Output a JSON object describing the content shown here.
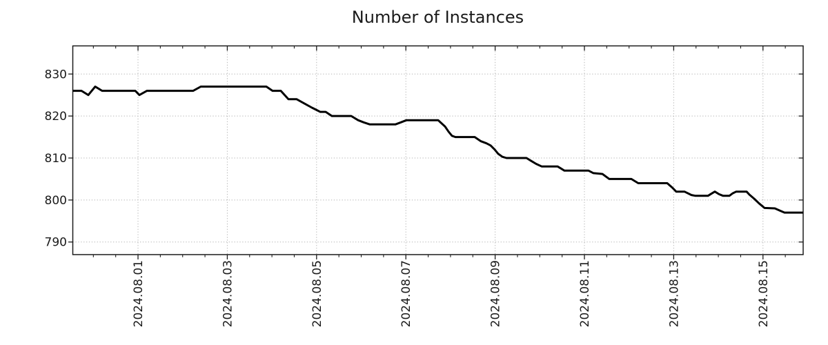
{
  "title": "Number of Instances",
  "colors": {
    "background": "#ffffff",
    "line": "#000000",
    "grid": "#b3b3b3",
    "spine": "#1a1a1a",
    "text": "#1a1a1a"
  },
  "chart_data": {
    "type": "line",
    "title": "Number of Instances",
    "x_axis": {
      "label": "",
      "unit": "days relative to 2024-08-01 00:00",
      "range_days": [
        -1.461,
        14.9
      ],
      "major_tick_positions_days": [
        0,
        2,
        4,
        6,
        8,
        10,
        12,
        14
      ],
      "major_tick_labels": [
        "2024.08.01",
        "2024.08.03",
        "2024.08.05",
        "2024.08.07",
        "2024.08.09",
        "2024.08.11",
        "2024.08.13",
        "2024.08.15"
      ],
      "minor_tick_interval_days": 0.5,
      "tick_label_rotation_deg": 90
    },
    "y_axis": {
      "label": "",
      "range": [
        787,
        836.7
      ],
      "ticks": [
        790,
        800,
        810,
        820,
        830
      ]
    },
    "grid": {
      "style": "dotted",
      "major_only": true,
      "color": "#b3b3b3"
    },
    "legend": null,
    "series": [
      {
        "name": "Number of Instances",
        "color": "#000000",
        "line_width": 3,
        "points": [
          [
            -1.461,
            826
          ],
          [
            -1.267,
            826
          ],
          [
            -1.113,
            825
          ],
          [
            -0.958,
            827
          ],
          [
            -0.804,
            826
          ],
          [
            -0.062,
            826
          ],
          [
            0.031,
            825
          ],
          [
            0.201,
            826
          ],
          [
            1.236,
            826
          ],
          [
            1.407,
            827
          ],
          [
            2.875,
            827
          ],
          [
            3.014,
            826
          ],
          [
            3.199,
            826
          ],
          [
            3.369,
            824
          ],
          [
            3.555,
            824
          ],
          [
            3.725,
            823
          ],
          [
            3.895,
            822
          ],
          [
            3.988,
            821.5
          ],
          [
            4.081,
            821
          ],
          [
            4.204,
            821
          ],
          [
            4.343,
            820
          ],
          [
            4.776,
            820
          ],
          [
            4.93,
            819
          ],
          [
            5.054,
            818.5
          ],
          [
            5.193,
            818
          ],
          [
            5.765,
            818
          ],
          [
            5.889,
            818.5
          ],
          [
            6.012,
            819
          ],
          [
            6.723,
            819
          ],
          [
            6.878,
            817.5
          ],
          [
            6.955,
            816.3
          ],
          [
            7.032,
            815.3
          ],
          [
            7.11,
            815
          ],
          [
            7.543,
            815
          ],
          [
            7.682,
            814
          ],
          [
            7.805,
            813.5
          ],
          [
            7.898,
            813
          ],
          [
            7.991,
            812
          ],
          [
            8.068,
            811
          ],
          [
            8.161,
            810.3
          ],
          [
            8.253,
            810
          ],
          [
            8.702,
            810
          ],
          [
            8.81,
            809.3
          ],
          [
            8.918,
            808.6
          ],
          [
            9.042,
            808
          ],
          [
            9.397,
            808
          ],
          [
            9.475,
            807.5
          ],
          [
            9.552,
            807
          ],
          [
            10.093,
            807
          ],
          [
            10.201,
            806.4
          ],
          [
            10.402,
            806.2
          ],
          [
            10.556,
            805
          ],
          [
            11.051,
            805
          ],
          [
            11.206,
            804
          ],
          [
            11.855,
            804
          ],
          [
            11.963,
            803
          ],
          [
            12.056,
            802
          ],
          [
            12.241,
            802
          ],
          [
            12.396,
            801.2
          ],
          [
            12.489,
            801
          ],
          [
            12.767,
            801
          ],
          [
            12.844,
            801.5
          ],
          [
            12.921,
            802
          ],
          [
            13.014,
            801.4
          ],
          [
            13.107,
            801
          ],
          [
            13.246,
            801
          ],
          [
            13.323,
            801.6
          ],
          [
            13.4,
            802
          ],
          [
            13.632,
            802
          ],
          [
            13.694,
            801.3
          ],
          [
            13.802,
            800.3
          ],
          [
            13.911,
            799.2
          ],
          [
            14.034,
            798.1
          ],
          [
            14.266,
            798
          ],
          [
            14.374,
            797.5
          ],
          [
            14.482,
            797
          ],
          [
            14.9,
            797
          ]
        ]
      }
    ]
  }
}
